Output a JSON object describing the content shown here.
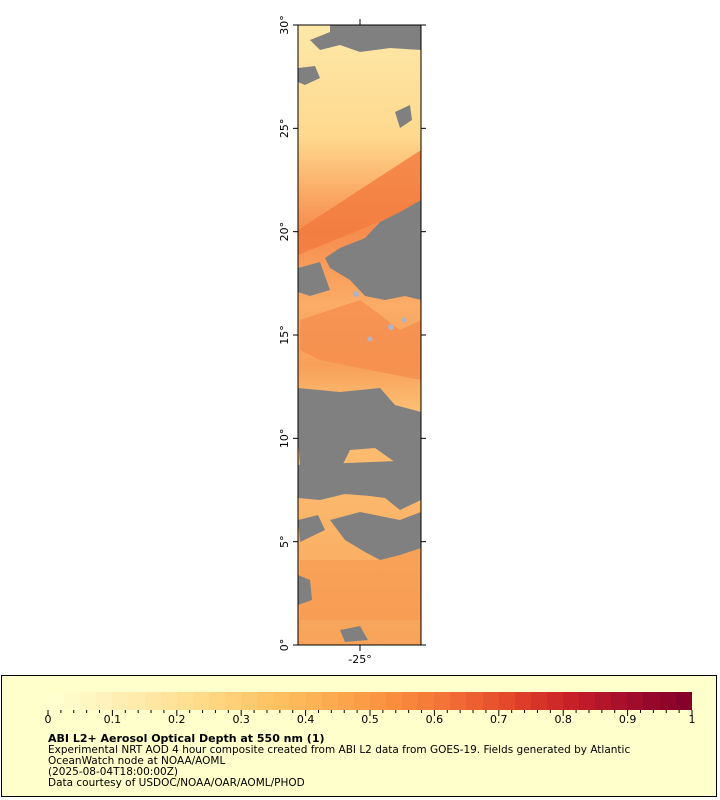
{
  "map": {
    "lat_labels": [
      "30°",
      "25°",
      "20°",
      "15°",
      "10°",
      "5°",
      "0°"
    ],
    "lon_labels": [
      "-25°"
    ],
    "lat_range": [
      0,
      30
    ],
    "colors": {
      "no_data": "#808080",
      "land": "#b0b4c8",
      "low": "#fde7a6",
      "mid": "#fca860",
      "high": "#f2703a"
    }
  },
  "legend": {
    "title": "ABI L2+ Aerosol Optical Depth at 550 nm (1)",
    "line1": "Experimental NRT AOD 4 hour composite created from ABI L2 data from GOES-19. Fields generated by Atlantic",
    "line2": "OceanWatch node at NOAA/AOML",
    "line3": "(2025-08-04T18:00:00Z)",
    "line4": "Data courtesy of USDOC/NOAA/OAR/AOML/PHOD",
    "tick_labels": [
      "0",
      "0.1",
      "0.2",
      "0.3",
      "0.4",
      "0.5",
      "0.6",
      "0.7",
      "0.8",
      "0.9",
      "1"
    ],
    "range": [
      0,
      1
    ],
    "colorbar_stops": [
      "#ffffd0",
      "#fff0b8",
      "#ffe39a",
      "#ffd27a",
      "#fdbe5e",
      "#fca64c",
      "#f98c3e",
      "#f26b35",
      "#e2452a",
      "#c92027",
      "#a40e2c",
      "#85002a"
    ]
  }
}
